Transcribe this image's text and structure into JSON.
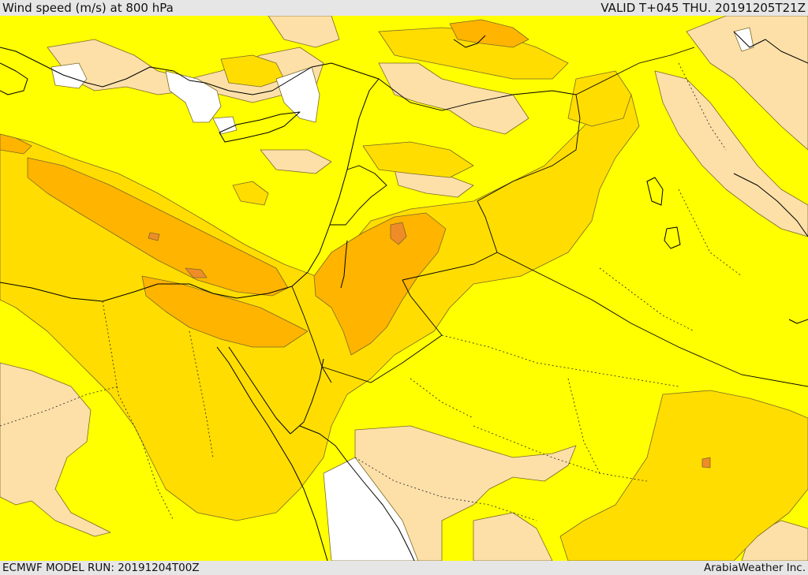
{
  "header": {
    "title": "Wind speed (m/s) at 800 hPa",
    "valid": "VALID T+045 THU. 20191205T21Z"
  },
  "footer": {
    "model_run": "ECMWF MODEL RUN: 20191204T00Z",
    "credit": "ArabiaWeather Inc."
  },
  "colors": {
    "calm": "#ffffff",
    "light": "#fde0a8",
    "moderate": "#ffff00",
    "fresh": "#ffdd00",
    "strong": "#ffb400",
    "very_strong": "#f08c28",
    "border": "#000000",
    "contour": "#7a6a2a"
  }
}
